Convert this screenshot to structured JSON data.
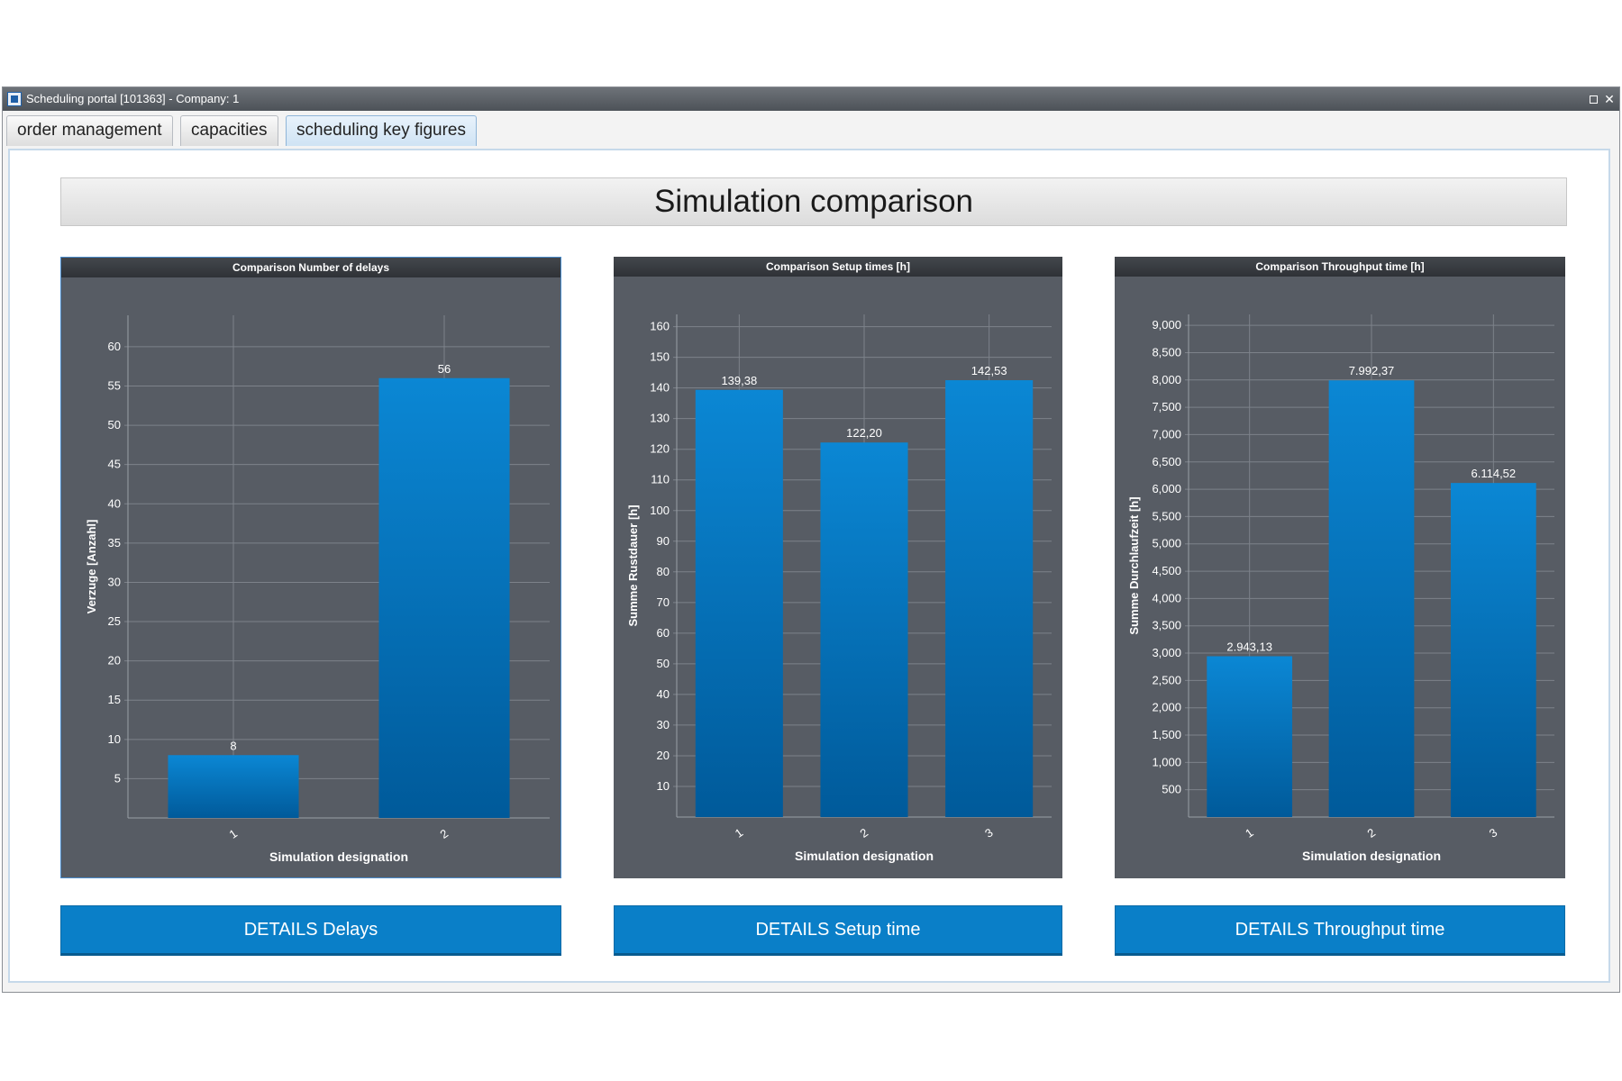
{
  "window": {
    "title": "Scheduling portal [101363] - Company: 1",
    "icon": "app-logo-icon",
    "controls": {
      "maximize": "maximize-icon",
      "close": "✕"
    }
  },
  "tabs": [
    {
      "label": "order management",
      "active": false
    },
    {
      "label": "capacities",
      "active": false
    },
    {
      "label": "scheduling key figures",
      "active": true
    }
  ],
  "page": {
    "title": "Simulation comparison"
  },
  "colors": {
    "panel_bg": "#575c64",
    "bar_top": "#0b87d4",
    "bar_bottom": "#005a9a",
    "button": "#0a7fc8",
    "grid": "#7d828a"
  },
  "chart_data": [
    {
      "type": "bar",
      "title": "Comparison Number of delays",
      "xlabel": "Simulation designation",
      "ylabel": "Verzuge [Anzahl]",
      "categories": [
        "1",
        "2"
      ],
      "values": [
        8,
        56
      ],
      "value_labels": [
        "8",
        "56"
      ],
      "ylim": [
        0,
        64
      ],
      "yticks": [
        5,
        10,
        15,
        20,
        25,
        30,
        35,
        40,
        45,
        50,
        55,
        60
      ],
      "ytick_labels": [
        "5",
        "10",
        "15",
        "20",
        "25",
        "30",
        "35",
        "40",
        "45",
        "50",
        "55",
        "60"
      ],
      "grid": true
    },
    {
      "type": "bar",
      "title": "Comparison Setup times [h]",
      "xlabel": "Simulation designation",
      "ylabel": "Summe Rustdauer [h]",
      "categories": [
        "1",
        "2",
        "3"
      ],
      "values": [
        139.38,
        122.2,
        142.53
      ],
      "value_labels": [
        "139,38",
        "122,20",
        "142,53"
      ],
      "ylim": [
        0,
        164
      ],
      "yticks": [
        10,
        20,
        30,
        40,
        50,
        60,
        70,
        80,
        90,
        100,
        110,
        120,
        130,
        140,
        150,
        160
      ],
      "ytick_labels": [
        "10",
        "20",
        "30",
        "40",
        "50",
        "60",
        "70",
        "80",
        "90",
        "100",
        "110",
        "120",
        "130",
        "140",
        "150",
        "160"
      ],
      "grid": true
    },
    {
      "type": "bar",
      "title": "Comparison Throughput time [h]",
      "xlabel": "Simulation designation",
      "ylabel": "Summe Durchlaufzeit [h]",
      "categories": [
        "1",
        "2",
        "3"
      ],
      "values": [
        2943.13,
        7992.37,
        6114.52
      ],
      "value_labels": [
        "2.943,13",
        "7.992,37",
        "6.114,52"
      ],
      "ylim": [
        0,
        9200
      ],
      "yticks": [
        500,
        1000,
        1500,
        2000,
        2500,
        3000,
        3500,
        4000,
        4500,
        5000,
        5500,
        6000,
        6500,
        7000,
        7500,
        8000,
        8500,
        9000
      ],
      "ytick_labels": [
        "500",
        "1,000",
        "1,500",
        "2,000",
        "2,500",
        "3,000",
        "3,500",
        "4,000",
        "4,500",
        "5,000",
        "5,500",
        "6,000",
        "6,500",
        "7,000",
        "7,500",
        "8,000",
        "8,500",
        "9,000"
      ],
      "grid": true
    }
  ],
  "buttons": [
    {
      "label": "DETAILS Delays"
    },
    {
      "label": "DETAILS Setup time"
    },
    {
      "label": "DETAILS Throughput time"
    }
  ]
}
